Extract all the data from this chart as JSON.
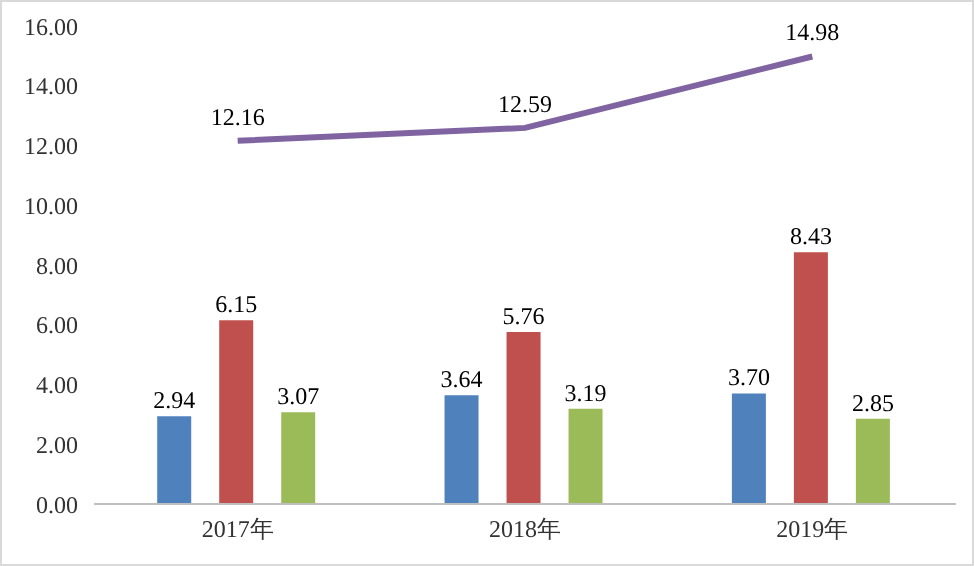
{
  "chart_data": {
    "type": "bar",
    "categories": [
      "2017年",
      "2018年",
      "2019年"
    ],
    "series": [
      {
        "color": "#4f81bd",
        "values": [
          2.94,
          3.64,
          3.7
        ],
        "value_labels": [
          "2.94",
          "3.64",
          "3.70"
        ]
      },
      {
        "color": "#c0504d",
        "values": [
          6.15,
          5.76,
          8.43
        ],
        "value_labels": [
          "6.15",
          "5.76",
          "8.43"
        ]
      },
      {
        "color": "#9bbb59",
        "values": [
          3.07,
          3.19,
          2.85
        ],
        "value_labels": [
          "3.07",
          "3.19",
          "2.85"
        ]
      },
      {
        "type": "line",
        "color": "#8064a2",
        "values": [
          12.16,
          12.59,
          14.98
        ],
        "value_labels": [
          "12.16",
          "12.59",
          "14.98"
        ]
      }
    ],
    "ylim": [
      0,
      16
    ],
    "yticks": [
      {
        "value": 0,
        "label": "0.00"
      },
      {
        "value": 2,
        "label": "2.00"
      },
      {
        "value": 4,
        "label": "4.00"
      },
      {
        "value": 6,
        "label": "6.00"
      },
      {
        "value": 8,
        "label": "8.00"
      },
      {
        "value": 10,
        "label": "10.00"
      },
      {
        "value": 12,
        "label": "12.00"
      },
      {
        "value": 14,
        "label": "14.00"
      },
      {
        "value": 16,
        "label": "16.00"
      }
    ],
    "grid": false,
    "legend": false,
    "marker": "none",
    "line_style": "solid"
  }
}
